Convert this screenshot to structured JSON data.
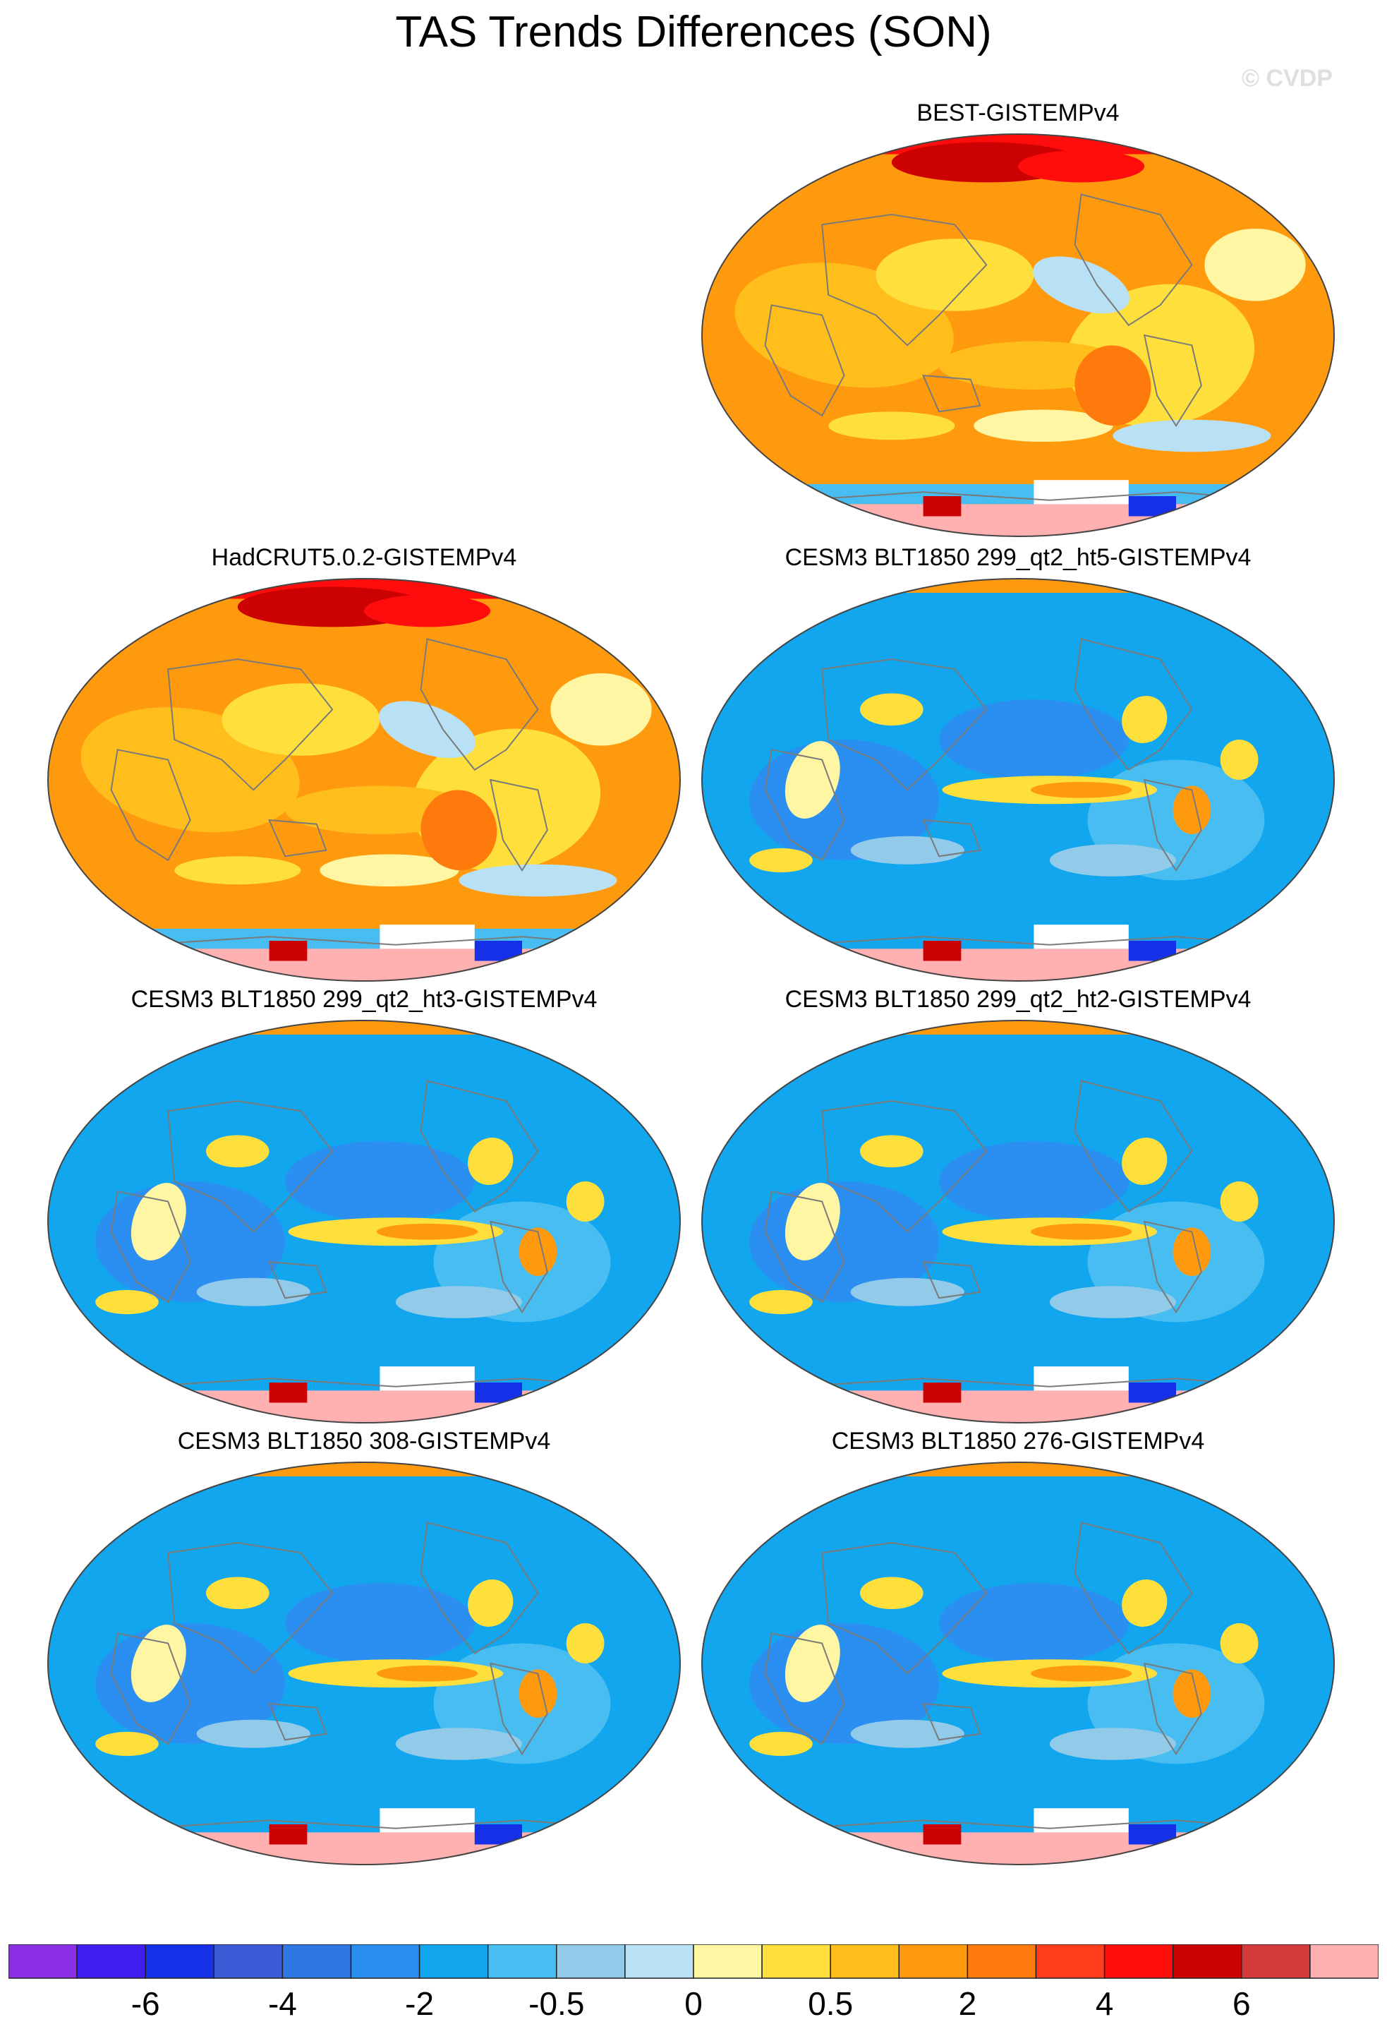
{
  "figure": {
    "title": "TAS Trends Differences (SON)",
    "credit": "© CVDP"
  },
  "panels": [
    {
      "label": "BEST-GISTEMPv4",
      "pattern": "warm-obs"
    },
    {
      "label": "HadCRUT5.0.2-GISTEMPv4",
      "pattern": "warm-obs"
    },
    {
      "label": "CESM3 BLT1850 299_qt2_ht5-GISTEMPv4",
      "pattern": "cool-model"
    },
    {
      "label": "CESM3 BLT1850 299_qt2_ht3-GISTEMPv4",
      "pattern": "cool-model"
    },
    {
      "label": "CESM3 BLT1850 299_qt2_ht2-GISTEMPv4",
      "pattern": "cool-model"
    },
    {
      "label": "CESM3 BLT1850 308-GISTEMPv4",
      "pattern": "cool-model"
    },
    {
      "label": "CESM3 BLT1850 276-GISTEMPv4",
      "pattern": "cool-model"
    }
  ],
  "colorbar": {
    "colors": [
      "#8b2fe6",
      "#3f1fef",
      "#1530e6",
      "#3a5bd6",
      "#2f77e3",
      "#2a8ff0",
      "#12a6ef",
      "#48bdf2",
      "#92caea",
      "#b9e1f5",
      "#fff6a3",
      "#ffdf3b",
      "#ffbe1c",
      "#ff9a0e",
      "#ff7a0d",
      "#ff3d1a",
      "#ff0d0d",
      "#cc0202",
      "#d63b3b",
      "#ffb0b0"
    ],
    "tick_labels": [
      "-6",
      "-4",
      "-2",
      "-0.5",
      "0",
      "0.5",
      "2",
      "4",
      "6"
    ]
  },
  "colors": {
    "land_outline": "#7a7a7a",
    "map_border": "#444444",
    "missing": "#ffffff"
  }
}
